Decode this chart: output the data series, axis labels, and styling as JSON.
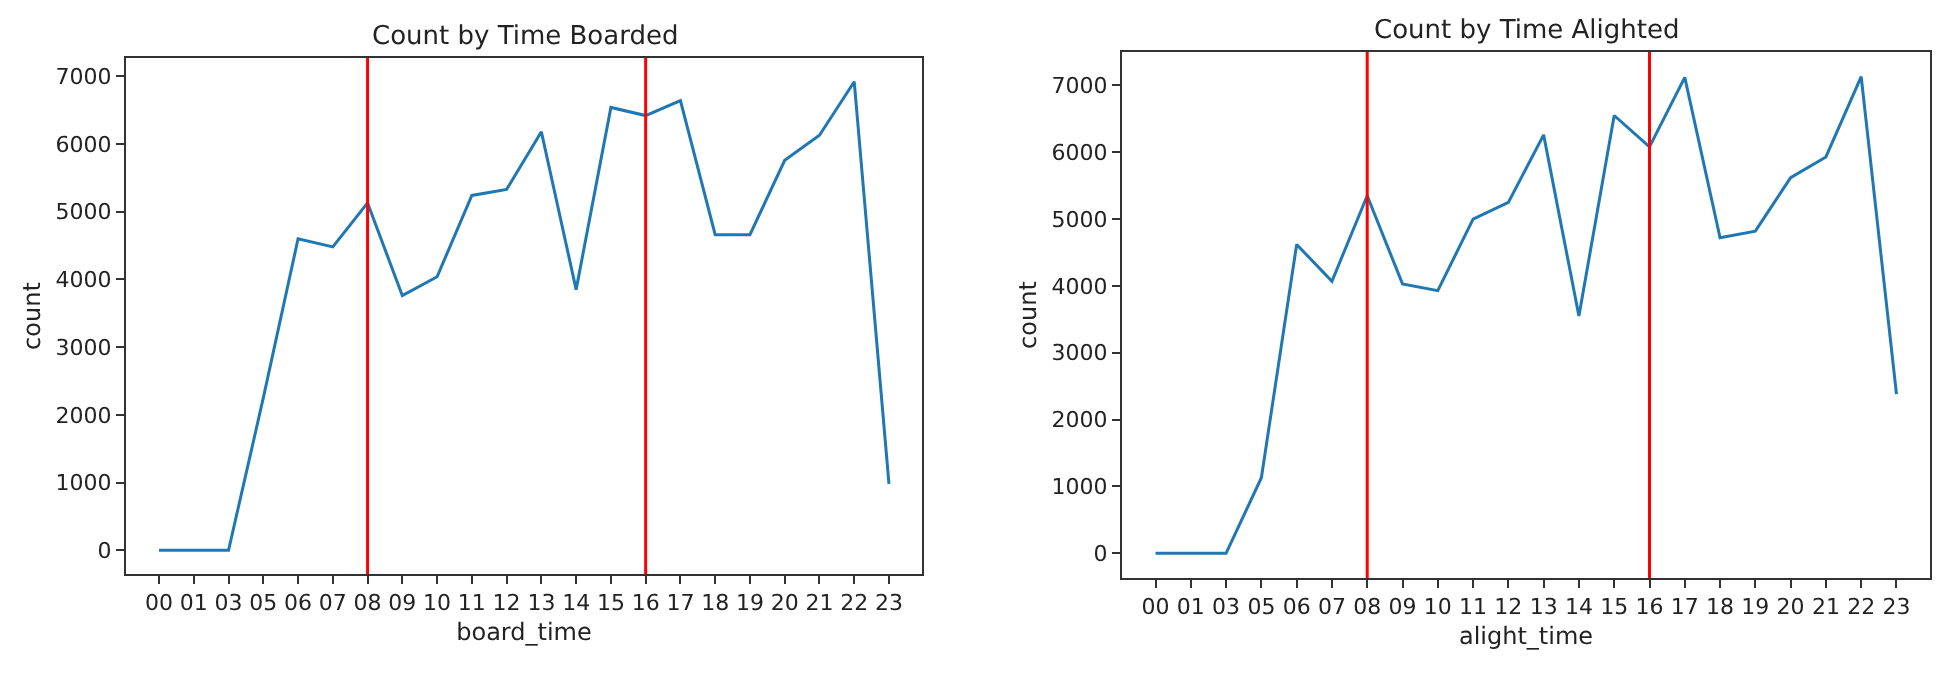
{
  "chart_data": [
    {
      "type": "line",
      "title": "Count by Time Boarded",
      "xlabel": "board_time",
      "ylabel": "count",
      "categories": [
        "00",
        "01",
        "03",
        "05",
        "06",
        "07",
        "08",
        "09",
        "10",
        "11",
        "12",
        "13",
        "14",
        "15",
        "16",
        "17",
        "18",
        "19",
        "20",
        "21",
        "22",
        "23"
      ],
      "series": [
        {
          "color": "#1f77b4",
          "values": [
            0,
            0,
            0,
            2250,
            4600,
            4480,
            5130,
            3760,
            4040,
            5240,
            5330,
            6180,
            3850,
            6540,
            6420,
            6640,
            4660,
            4660,
            5760,
            6130,
            6920,
            980
          ]
        }
      ],
      "ylim": [
        -350,
        7270
      ],
      "yticks": [
        0,
        1000,
        2000,
        3000,
        4000,
        5000,
        6000,
        7000
      ],
      "marker": "none",
      "line_style": "solid",
      "ref_lines": [
        {
          "axis": "x",
          "value": "08",
          "color": "#ff0000"
        },
        {
          "axis": "x",
          "value": "16",
          "color": "#ff0000"
        }
      ]
    },
    {
      "type": "line",
      "title": "Count by Time Alighted",
      "xlabel": "alight_time",
      "ylabel": "count",
      "categories": [
        "00",
        "01",
        "03",
        "05",
        "06",
        "07",
        "08",
        "09",
        "10",
        "11",
        "12",
        "13",
        "14",
        "15",
        "16",
        "17",
        "18",
        "19",
        "20",
        "21",
        "22",
        "23"
      ],
      "series": [
        {
          "color": "#1f77b4",
          "values": [
            0,
            0,
            0,
            1130,
            4620,
            4070,
            5350,
            4030,
            3930,
            5000,
            5250,
            6260,
            3550,
            6550,
            6080,
            7120,
            4720,
            4820,
            5620,
            5930,
            7130,
            2380
          ]
        }
      ],
      "ylim": [
        -370,
        7500
      ],
      "yticks": [
        0,
        1000,
        2000,
        3000,
        4000,
        5000,
        6000,
        7000
      ],
      "marker": "none",
      "line_style": "solid",
      "ref_lines": [
        {
          "axis": "x",
          "value": "08",
          "color": "#ff0000"
        },
        {
          "axis": "x",
          "value": "16",
          "color": "#ff0000"
        }
      ]
    }
  ]
}
